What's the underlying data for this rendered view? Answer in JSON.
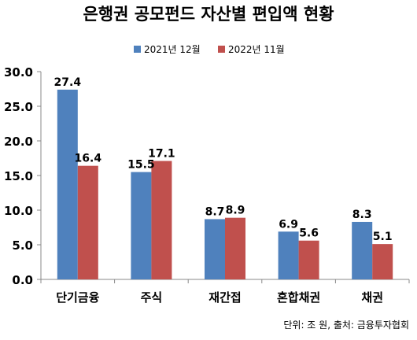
{
  "chart_data": {
    "type": "bar",
    "title": "은행권 공모펀드 자산별 편입액 현황",
    "categories": [
      "단기금융",
      "주식",
      "재간접",
      "혼합채권",
      "채권"
    ],
    "series": [
      {
        "name": "2021년 12월",
        "color": "#4F81BD",
        "values": [
          27.4,
          15.5,
          8.7,
          6.9,
          8.3
        ]
      },
      {
        "name": "2022년 11월",
        "color": "#C0504D",
        "values": [
          16.4,
          17.1,
          8.9,
          5.6,
          5.1
        ]
      }
    ],
    "ylim": [
      0,
      30
    ],
    "yticks": [
      "0.0",
      "5.0",
      "10.0",
      "15.0",
      "20.0",
      "25.0",
      "30.0"
    ],
    "grid": false,
    "legend_position": "top-center",
    "note": "단위: 조 원, 출처: 금융투자협회"
  }
}
